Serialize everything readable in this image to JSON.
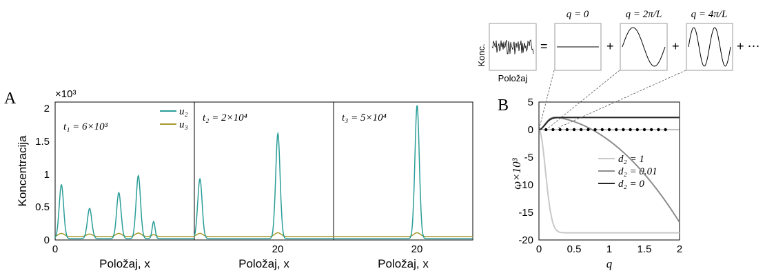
{
  "colors": {
    "u2": "#2a9d99",
    "u3": "#a59a2c",
    "d2_1": "#c8c8c8",
    "d2_001": "#8c8c8c",
    "d2_0": "#262626"
  },
  "chart_data": [
    {
      "type": "line",
      "panel_label": "A",
      "exponent_label": "×10³",
      "ylabel": "Koncentracija",
      "xlabel": "Položaj, x",
      "ylim": [
        0,
        2100
      ],
      "yticks": [
        "0",
        "0.5",
        "1",
        "1.5",
        "2"
      ],
      "legend": [
        {
          "name": "u₂",
          "color": "#2a9d99"
        },
        {
          "name": "u₃",
          "color": "#a59a2c"
        }
      ],
      "subplots": [
        {
          "time_label": "t₁ = 6×10³",
          "xlim": [
            0,
            40
          ],
          "xticks": [
            "0"
          ],
          "baseline_u2": 20,
          "u3_level": 50,
          "u2_peaks": [
            {
              "x": 1.8,
              "height": 820,
              "width": 0.9
            },
            {
              "x": 9.9,
              "height": 460,
              "width": 0.9
            },
            {
              "x": 18.3,
              "height": 700,
              "width": 0.9
            },
            {
              "x": 23.9,
              "height": 960,
              "width": 0.9
            },
            {
              "x": 28.3,
              "height": 260,
              "width": 0.6
            }
          ],
          "u3_bumps": [
            {
              "x": 1.8,
              "height": 50,
              "width": 1.3
            },
            {
              "x": 9.9,
              "height": 40,
              "width": 1.3
            },
            {
              "x": 18.3,
              "height": 50,
              "width": 1.3
            },
            {
              "x": 23.9,
              "height": 55,
              "width": 1.3
            },
            {
              "x": 28.3,
              "height": 30,
              "width": 1.0
            }
          ]
        },
        {
          "time_label": "t₂ = 2×10⁴",
          "xlim": [
            0,
            40
          ],
          "xticks": [
            "20"
          ],
          "baseline_u2": 20,
          "u3_level": 50,
          "u2_peaks": [
            {
              "x": 1.6,
              "height": 910,
              "width": 0.9
            },
            {
              "x": 24.0,
              "height": 1600,
              "width": 0.9
            }
          ],
          "u3_bumps": [
            {
              "x": 1.6,
              "height": 50,
              "width": 1.3
            },
            {
              "x": 24.0,
              "height": 60,
              "width": 1.3
            }
          ]
        },
        {
          "time_label": "t₃ = 5×10⁴",
          "xlim": [
            0,
            40
          ],
          "xticks": [
            "20"
          ],
          "baseline_u2": 20,
          "u3_level": 50,
          "u2_peaks": [
            {
              "x": 24.0,
              "height": 2030,
              "width": 0.9
            }
          ],
          "u3_bumps": [
            {
              "x": 24.0,
              "height": 60,
              "width": 1.3
            }
          ]
        }
      ]
    },
    {
      "type": "line",
      "panel_label": "B",
      "xlabel": "q",
      "ylabel": "ω×10³",
      "xlim": [
        0,
        2
      ],
      "ylim": [
        -20,
        5
      ],
      "xticks": [
        "0",
        "0.5",
        "1",
        "1.5",
        "2"
      ],
      "yticks": [
        "5",
        "0",
        "-5",
        "-10",
        "-15",
        "-20"
      ],
      "series": [
        {
          "name": "d₂ = 1",
          "color": "#c8c8c8",
          "kind": "d1"
        },
        {
          "name": "d₂ = 0.01",
          "color": "#8c8c8c",
          "kind": "d001"
        },
        {
          "name": "d₂ = 0",
          "color": "#262626",
          "kind": "d0"
        }
      ],
      "discrete_q": [
        0.1,
        0.2,
        0.3,
        0.4,
        0.5,
        0.6,
        0.7,
        0.8,
        0.9,
        1.0,
        1.1,
        1.2,
        1.3,
        1.4,
        1.5,
        1.6,
        1.7,
        1.8
      ]
    }
  ],
  "inset": {
    "ylabel": "Konc.",
    "xlabel": "Položaj",
    "modes": [
      {
        "label": "q = 0"
      },
      {
        "label": "q = 2π/L"
      },
      {
        "label": "q = 4π/L"
      }
    ],
    "equals": "=",
    "plus": "+",
    "ellipsis": "+ ⋯"
  }
}
